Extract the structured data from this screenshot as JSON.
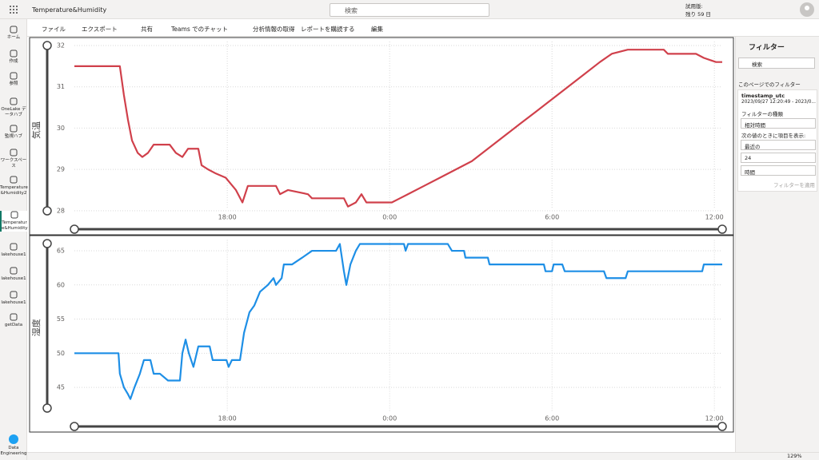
{
  "top_bar": {
    "app_title": "Temperature&Humidity",
    "search": "検索",
    "trial_label": "試用版:",
    "trial_days": "残り 59 日"
  },
  "toolbar": {
    "items": [
      "ファイル",
      "エクスポート",
      "共有",
      "Teams でのチャット",
      "分析情報の取得",
      "レポートを購読する",
      "編集"
    ]
  },
  "nav": {
    "items": [
      "ホーム",
      "作成",
      "参照",
      "OneLake データハブ",
      "監視ハブ",
      "ワークスペース",
      "Temperature &Humidity2",
      "Temperatur e&Humidity",
      "lakehouse1",
      "lakehouse1",
      "lakehouse1",
      "getData"
    ],
    "footer": "Data Engineering"
  },
  "filter_pane": {
    "title": "フィルター",
    "search": "検索",
    "section": "このページでのフィルター",
    "field": "timestamp_utc",
    "range": "2023/09/27 12:20:49 - 2023/0...",
    "type_label": "フィルターの種類",
    "type_value": "相対時間",
    "show_label": "次の値のときに項目を表示:",
    "period": "最近の",
    "count": "24",
    "unit": "時間",
    "apply": "フィルターを適用"
  },
  "status_bar": {
    "zoom": "129%"
  },
  "chart_data": [
    {
      "type": "line",
      "y_label": "気温",
      "color": "#d0404b",
      "grid": true,
      "x": [
        12.35,
        14.03,
        14.18,
        14.33,
        14.48,
        14.69,
        14.86,
        15.07,
        15.28,
        15.87,
        16.1,
        16.34,
        16.55,
        16.93,
        17.05,
        17.29,
        17.58,
        17.94,
        18.32,
        18.56,
        18.76,
        19.8,
        19.95,
        20.24,
        20.98,
        21.13,
        22.31,
        22.46,
        22.75,
        22.96,
        23.14,
        24.08,
        24.38,
        24.68,
        25.27,
        25.86,
        26.45,
        27.04,
        27.63,
        28.22,
        28.81,
        29.41,
        30.0,
        30.59,
        31.18,
        31.77,
        32.21,
        32.8,
        34.13,
        34.28,
        35.32,
        35.61,
        36.06,
        36.29
      ],
      "values": [
        31.5,
        31.5,
        30.8,
        30.2,
        29.7,
        29.4,
        29.3,
        29.4,
        29.6,
        29.6,
        29.4,
        29.3,
        29.5,
        29.5,
        29.1,
        29.0,
        28.9,
        28.8,
        28.5,
        28.2,
        28.6,
        28.6,
        28.4,
        28.5,
        28.4,
        28.3,
        28.3,
        28.1,
        28.2,
        28.4,
        28.2,
        28.2,
        28.3,
        28.4,
        28.6,
        28.8,
        29.0,
        29.2,
        29.5,
        29.8,
        30.1,
        30.4,
        30.7,
        31.0,
        31.3,
        31.6,
        31.8,
        31.9,
        31.9,
        31.8,
        31.8,
        31.7,
        31.6,
        31.6
      ],
      "xlim": [
        12.35,
        36.29
      ],
      "xticks": [
        {
          "value": 18,
          "label": "18:00"
        },
        {
          "value": 24,
          "label": "0:00"
        },
        {
          "value": 30,
          "label": "6:00"
        },
        {
          "value": 36,
          "label": "12:00"
        }
      ],
      "ylim": [
        27.9,
        32
      ],
      "yticks": [
        28,
        29,
        30,
        31,
        32
      ]
    },
    {
      "type": "line",
      "y_label": "湿度",
      "color": "#1e8fe6",
      "grid": true,
      "x": [
        12.35,
        13.98,
        14.03,
        14.18,
        14.33,
        14.42,
        14.57,
        14.77,
        14.92,
        15.16,
        15.28,
        15.51,
        15.81,
        16.25,
        16.34,
        16.46,
        16.58,
        16.75,
        16.93,
        17.35,
        17.46,
        17.97,
        18.05,
        18.17,
        18.47,
        18.62,
        18.82,
        19.0,
        19.21,
        19.5,
        19.71,
        19.8,
        20.01,
        20.09,
        20.39,
        20.77,
        21.13,
        22.02,
        22.16,
        22.31,
        22.4,
        22.55,
        22.75,
        22.9,
        24.53,
        24.59,
        24.68,
        26.15,
        26.3,
        26.75,
        26.8,
        27.63,
        27.69,
        29.7,
        29.76,
        30.0,
        30.06,
        30.38,
        30.47,
        31.92,
        32.01,
        32.72,
        32.8,
        35.55,
        35.61,
        36.29
      ],
      "values": [
        50,
        50,
        47,
        45,
        44,
        43.3,
        45,
        47,
        49,
        49,
        47,
        47,
        46,
        46,
        50,
        52,
        50,
        48,
        51,
        51,
        49,
        49,
        48,
        49,
        49,
        53,
        56,
        57,
        59,
        60,
        61,
        60,
        61,
        63,
        63,
        64,
        65,
        65,
        66,
        62,
        60,
        63,
        65,
        66,
        66,
        65,
        66,
        66,
        65,
        65,
        64,
        64,
        63,
        63,
        62,
        62,
        63,
        63,
        62,
        62,
        61,
        61,
        62,
        62,
        63,
        63
      ],
      "xlim": [
        12.35,
        36.29
      ],
      "xticks": [
        {
          "value": 18,
          "label": "18:00"
        },
        {
          "value": 24,
          "label": "0:00"
        },
        {
          "value": 30,
          "label": "6:00"
        },
        {
          "value": 36,
          "label": "12:00"
        }
      ],
      "ylim": [
        41.5,
        66
      ],
      "yticks": [
        45,
        50,
        55,
        60,
        65
      ]
    }
  ]
}
